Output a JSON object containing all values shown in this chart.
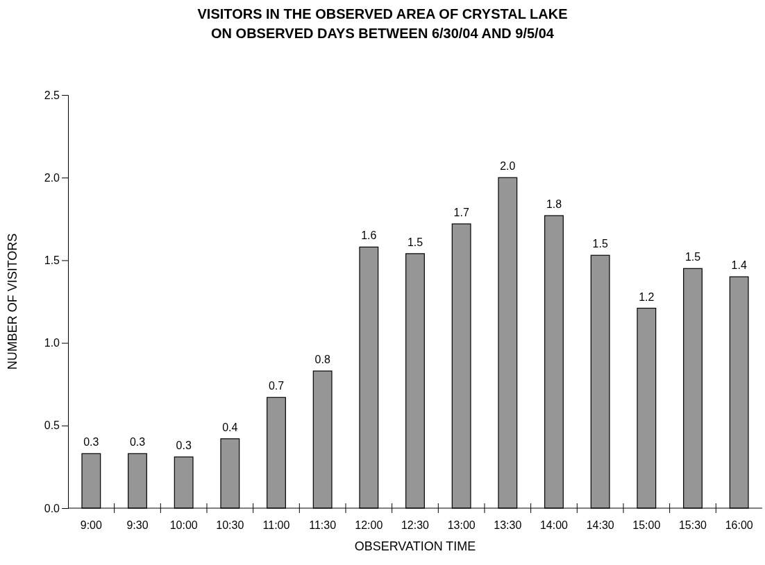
{
  "chart_data": {
    "type": "bar",
    "title": "VISITORS IN THE OBSERVED AREA OF CRYSTAL LAKE\nON OBSERVED DAYS BETWEEN 6/30/04 AND 9/5/04",
    "xlabel": "OBSERVATION TIME",
    "ylabel": "NUMBER OF VISITORS",
    "categories": [
      "9:00",
      "9:30",
      "10:00",
      "10:30",
      "11:00",
      "11:30",
      "12:00",
      "12:30",
      "13:00",
      "13:30",
      "14:00",
      "14:30",
      "15:00",
      "15:30",
      "16:00"
    ],
    "values": [
      0.33,
      0.33,
      0.31,
      0.42,
      0.67,
      0.83,
      1.58,
      1.54,
      1.72,
      2.0,
      1.77,
      1.53,
      1.21,
      1.45,
      1.4
    ],
    "value_labels": [
      "0.3",
      "0.3",
      "0.3",
      "0.4",
      "0.7",
      "0.8",
      "1.6",
      "1.5",
      "1.7",
      "2.0",
      "1.8",
      "1.5",
      "1.2",
      "1.5",
      "1.4"
    ],
    "color": "#969696",
    "ylim": [
      0,
      2.5
    ],
    "yticks": [
      {
        "value": 0,
        "label": "0.0"
      },
      {
        "value": 0.5,
        "label": "0.5"
      },
      {
        "value": 1,
        "label": "1.0"
      },
      {
        "value": 1.5,
        "label": "1.5"
      },
      {
        "value": 2,
        "label": "2.0"
      },
      {
        "value": 2.5,
        "label": "2.5"
      }
    ],
    "tick_labels": "xy"
  }
}
